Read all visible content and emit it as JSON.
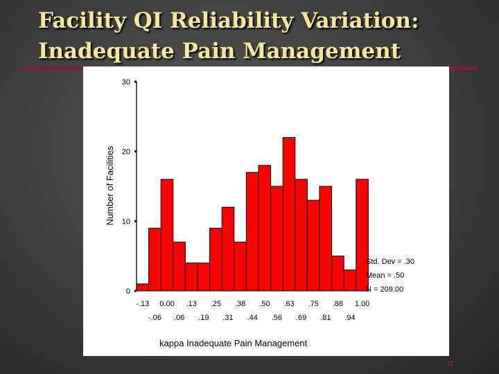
{
  "slide": {
    "title_line1": "Facility QI Reliability Variation:",
    "title_line2": "Inadequate Pain Management",
    "slide_number": "31"
  },
  "chart_data": {
    "type": "bar",
    "title": "",
    "xlabel": "kappa Inadequate Pain Management",
    "ylabel": "Number of Facilities",
    "ylim": [
      0,
      30
    ],
    "y_ticks": [
      "0",
      "10",
      "20",
      "30"
    ],
    "x_tick_labels_upper": [
      "-.13",
      "0.00",
      ".13",
      ".25",
      ".38",
      ".50",
      ".63",
      ".75",
      ".88",
      "1.00"
    ],
    "x_tick_labels_lower": [
      "-.06",
      ".06",
      ".19",
      ".31",
      ".44",
      ".56",
      ".69",
      ".81",
      ".94"
    ],
    "categories": [
      "-.13",
      "-.06",
      "0.00",
      ".06",
      ".13",
      ".19",
      ".25",
      ".31",
      ".38",
      ".44",
      ".50",
      ".56",
      ".63",
      ".69",
      ".75",
      ".81",
      ".88",
      ".94",
      "1.00"
    ],
    "values": [
      1,
      9,
      16,
      7,
      4,
      4,
      9,
      12,
      7,
      17,
      18,
      15,
      22,
      16,
      13,
      15,
      5,
      3,
      16
    ],
    "bar_color": "#ff0000",
    "stats": [
      "Std. Dev = .30",
      "Mean = .50",
      "N = 209.00"
    ],
    "grid": false
  }
}
